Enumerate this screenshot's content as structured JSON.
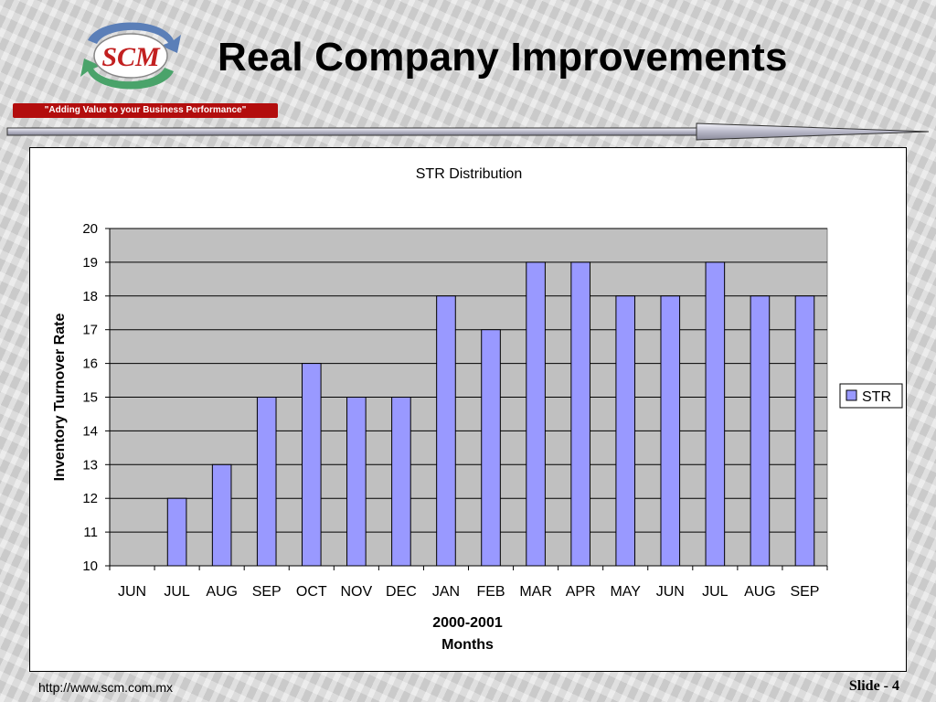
{
  "header": {
    "title": "Real Company Improvements",
    "logo_text": "SCM",
    "tagline": "\"Adding Value to your Business Performance\""
  },
  "footer": {
    "url": "http://www.scm.com.mx",
    "slide": "Slide - 4"
  },
  "colors": {
    "bar_fill": "#9999ff",
    "plot_bg": "#c0c0c0",
    "tagline_bg": "#b30d0d",
    "logo_blue": "#5b7fb8",
    "logo_green": "#4aa36a",
    "logo_red": "#c22020"
  },
  "chart_data": {
    "type": "bar",
    "title": "STR Distribution",
    "ylabel": "Inventory Turnover Rate",
    "xlabel_line1": "2000-2001",
    "xlabel_line2": "Months",
    "categories": [
      "JUN",
      "JUL",
      "AUG",
      "SEP",
      "OCT",
      "NOV",
      "DEC",
      "JAN",
      "FEB",
      "MAR",
      "APR",
      "MAY",
      "JUN",
      "JUL",
      "AUG",
      "SEP"
    ],
    "series": [
      {
        "name": "STR",
        "values": [
          10,
          12,
          13,
          15,
          16,
          15,
          15,
          18,
          17,
          19,
          19,
          18,
          18,
          19,
          18,
          18
        ]
      }
    ],
    "ylim": [
      10,
      20
    ],
    "yticks": [
      10,
      11,
      12,
      13,
      14,
      15,
      16,
      17,
      18,
      19,
      20
    ],
    "grid": true,
    "legend_position": "right"
  }
}
